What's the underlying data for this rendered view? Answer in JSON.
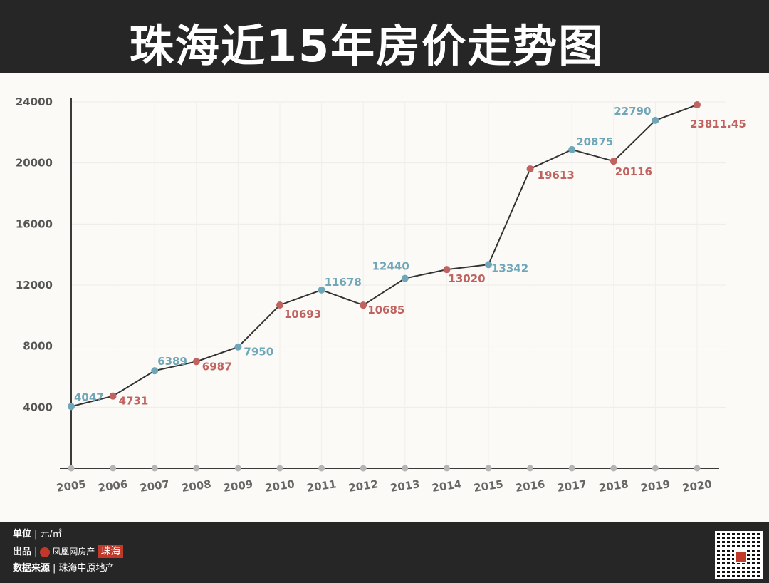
{
  "header": {
    "title": "珠海近15年房价走势图"
  },
  "chart_data": {
    "type": "line",
    "x": [
      "2005",
      "2006",
      "2007",
      "2008",
      "2009",
      "2010",
      "2011",
      "2012",
      "2013",
      "2014",
      "2015",
      "2016",
      "2017",
      "2018",
      "2019",
      "2020"
    ],
    "values": [
      4047,
      4731,
      6389,
      6987,
      7950,
      10693,
      11678,
      10685,
      12440,
      13020,
      13342,
      19613,
      20875,
      20116,
      22790,
      23811.45
    ],
    "labels": [
      "4047",
      "4731",
      "6389",
      "6987",
      "7950",
      "10693",
      "11678",
      "10685",
      "12440",
      "13020",
      "13342",
      "19613",
      "20875",
      "20116",
      "22790",
      "23811.45"
    ],
    "y_ticks": [
      "4000",
      "8000",
      "12000",
      "16000",
      "20000",
      "24000"
    ],
    "ylim": [
      0,
      24000
    ],
    "colors": {
      "blue": "#6fa6b8",
      "red": "#c0625f",
      "line": "#333333",
      "axis": "#3a3a3a",
      "tick_dot": "#b5b5b5"
    }
  },
  "footer": {
    "unit_key": "单位",
    "unit_value": "元/㎡",
    "producer_key": "出品",
    "producer_brand": "凤凰网房产",
    "producer_tag": "珠海",
    "source_key": "数据来源",
    "source_value": "珠海中原地产",
    "sep": "|"
  }
}
